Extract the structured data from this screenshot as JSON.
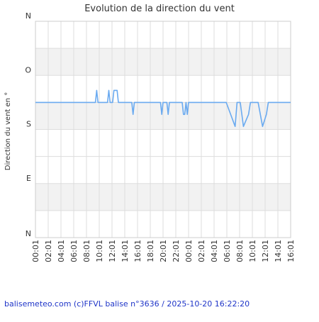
{
  "chart_data": {
    "type": "line",
    "title": "Evolution de la direction du vent",
    "ylabel": "Direction du vent en °",
    "xlabel": "",
    "y_tick_labels": [
      "N",
      "E",
      "S",
      "O",
      "N"
    ],
    "y_tick_values": [
      0,
      90,
      180,
      270,
      360
    ],
    "ylim": [
      0,
      360
    ],
    "x_tick_labels": [
      "00:01",
      "02:01",
      "04:01",
      "06:01",
      "08:01",
      "10:01",
      "12:01",
      "14:01",
      "16:01",
      "18:01",
      "20:01",
      "22:01",
      "00:01",
      "02:01",
      "04:01",
      "06:01",
      "08:01",
      "10:01",
      "12:01",
      "14:01",
      "16:01"
    ],
    "x_range_hours": [
      0,
      40
    ],
    "grid": true,
    "alternating_bands": true,
    "series": [
      {
        "color": "#6aaaf0",
        "points": [
          [
            0.0,
            225
          ],
          [
            9.4,
            225
          ],
          [
            9.6,
            245
          ],
          [
            9.8,
            225
          ],
          [
            11.3,
            225
          ],
          [
            11.5,
            245
          ],
          [
            11.7,
            225
          ],
          [
            12.1,
            225
          ],
          [
            12.3,
            245
          ],
          [
            12.8,
            245
          ],
          [
            13.0,
            225
          ],
          [
            15.1,
            225
          ],
          [
            15.3,
            205
          ],
          [
            15.5,
            225
          ],
          [
            19.6,
            225
          ],
          [
            19.8,
            205
          ],
          [
            20.0,
            225
          ],
          [
            20.6,
            225
          ],
          [
            20.8,
            205
          ],
          [
            21.0,
            225
          ],
          [
            23.0,
            225
          ],
          [
            23.2,
            205
          ],
          [
            23.4,
            205
          ],
          [
            23.6,
            225
          ],
          [
            23.8,
            205
          ],
          [
            24.0,
            225
          ],
          [
            29.9,
            225
          ],
          [
            31.3,
            185
          ],
          [
            31.6,
            225
          ],
          [
            32.1,
            225
          ],
          [
            32.6,
            185
          ],
          [
            33.4,
            205
          ],
          [
            33.7,
            225
          ],
          [
            34.9,
            225
          ],
          [
            35.6,
            185
          ],
          [
            36.2,
            205
          ],
          [
            36.5,
            225
          ],
          [
            40.0,
            225
          ]
        ]
      }
    ]
  },
  "footer": {
    "text": "balisemeteo.com (c)FFVL balise n°3636 / 2025-10-20 16:22:20"
  }
}
